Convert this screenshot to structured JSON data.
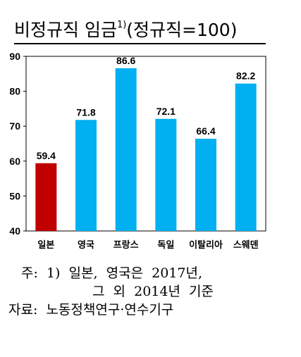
{
  "title": {
    "main": "비정규직 임금",
    "superscript": "1)",
    "suffix": "(정규직=100)"
  },
  "chart_data": {
    "type": "bar",
    "categories": [
      "일본",
      "영국",
      "프랑스",
      "독일",
      "이탈리아",
      "스웨덴"
    ],
    "values": [
      59.4,
      71.8,
      86.6,
      72.1,
      66.4,
      82.2
    ],
    "value_labels": [
      "59.4",
      "71.8",
      "86.6",
      "72.1",
      "66.4",
      "82.2"
    ],
    "colors": [
      "#c00000",
      "#00b0f0",
      "#00b0f0",
      "#00b0f0",
      "#00b0f0",
      "#00b0f0"
    ],
    "ylim": [
      40,
      90
    ],
    "yticks": [
      "40",
      "50",
      "60",
      "70",
      "80",
      "90"
    ],
    "grid": false
  },
  "notes": {
    "note1": "주:  1)  일본,  영국은  2017년,",
    "note2": "그  외  2014년  기준",
    "source": "자료:  노동정책연구·연수기구"
  }
}
